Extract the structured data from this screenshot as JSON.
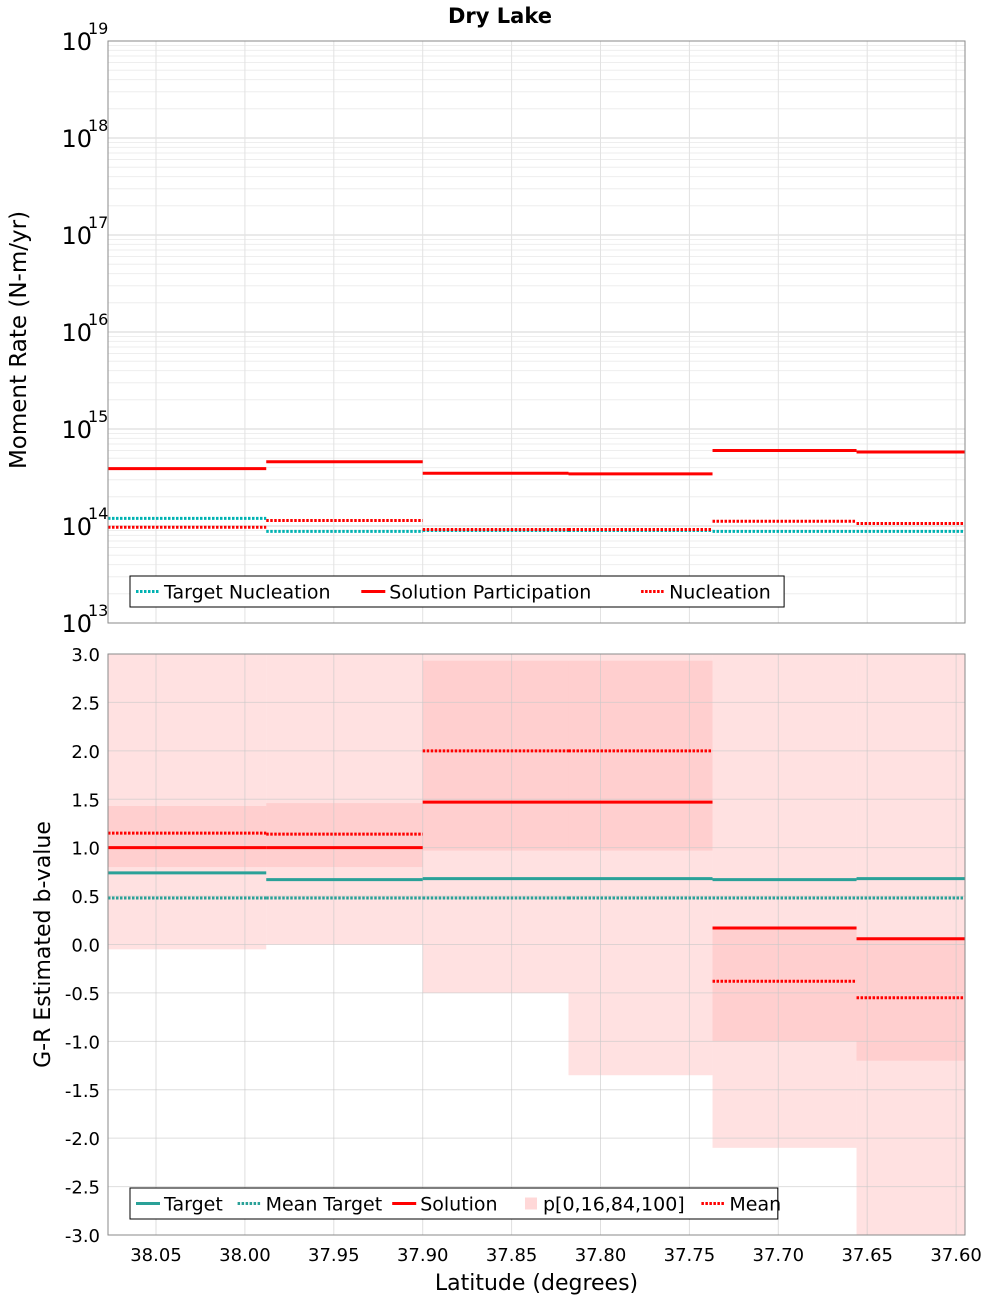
{
  "title": "Dry Lake",
  "chart_data": [
    {
      "type": "line",
      "subtype": "step",
      "ylabel": "Moment Rate (N-m/yr)",
      "xlabel": "",
      "yscale": "log",
      "ylim": [
        10000000000000.0,
        1e+19
      ],
      "xlim": [
        38.077,
        37.595
      ],
      "x_reversed": true,
      "x_ticks": [
        "38.05",
        "38.00",
        "37.95",
        "37.90",
        "37.85",
        "37.80",
        "37.75",
        "37.70",
        "37.65",
        "37.60"
      ],
      "x_tick_values": [
        38.05,
        38.0,
        37.95,
        37.9,
        37.85,
        37.8,
        37.75,
        37.7,
        37.65,
        37.6
      ],
      "y_ticks": [
        {
          "base": "10",
          "exp": "19",
          "value": 1e+19
        },
        {
          "base": "10",
          "exp": "18",
          "value": 1e+18
        },
        {
          "base": "10",
          "exp": "17",
          "value": 1e+17
        },
        {
          "base": "10",
          "exp": "16",
          "value": 1e+16
        },
        {
          "base": "10",
          "exp": "15",
          "value": 1000000000000000.0
        },
        {
          "base": "10",
          "exp": "14",
          "value": 100000000000000.0
        },
        {
          "base": "10",
          "exp": "13",
          "value": 10000000000000.0
        }
      ],
      "grid": true,
      "legend_position": "bottom-left",
      "bin_edges": [
        38.077,
        37.988,
        37.9,
        37.818,
        37.737,
        37.656,
        37.595
      ],
      "series": [
        {
          "name": "Target Nucleation",
          "style": "dotted",
          "color": "#00b2b2",
          "values": [
            120000000000000.0,
            88000000000000.0,
            90000000000000.0,
            90000000000000.0,
            88000000000000.0,
            88000000000000.0
          ]
        },
        {
          "name": "Solution Participation",
          "style": "solid",
          "color": "#ff0000",
          "values": [
            390000000000000.0,
            460000000000000.0,
            350000000000000.0,
            345000000000000.0,
            600000000000000.0,
            580000000000000.0
          ]
        },
        {
          "name": "Nucleation",
          "style": "dotted",
          "color": "#ff0000",
          "values": [
            97000000000000.0,
            114000000000000.0,
            92000000000000.0,
            92000000000000.0,
            112000000000000.0,
            106000000000000.0
          ]
        }
      ]
    },
    {
      "type": "line",
      "subtype": "step",
      "ylabel": "G-R Estimated b-value",
      "xlabel": "Latitude (degrees)",
      "ylim": [
        -3.0,
        3.0
      ],
      "xlim": [
        38.077,
        37.595
      ],
      "x_reversed": true,
      "x_ticks": [
        "38.05",
        "38.00",
        "37.95",
        "37.90",
        "37.85",
        "37.80",
        "37.75",
        "37.70",
        "37.65",
        "37.60"
      ],
      "x_tick_values": [
        38.05,
        38.0,
        37.95,
        37.9,
        37.85,
        37.8,
        37.75,
        37.7,
        37.65,
        37.6
      ],
      "y_ticks": [
        "3.0",
        "2.5",
        "2.0",
        "1.5",
        "1.0",
        "0.5",
        "0.0",
        "-0.5",
        "-1.0",
        "-1.5",
        "-2.0",
        "-2.5",
        "-3.0"
      ],
      "y_tick_values": [
        3.0,
        2.5,
        2.0,
        1.5,
        1.0,
        0.5,
        0.0,
        -0.5,
        -1.0,
        -1.5,
        -2.0,
        -2.5,
        -3.0
      ],
      "grid": true,
      "legend_position": "bottom-left",
      "bin_edges": [
        38.077,
        37.988,
        37.9,
        37.818,
        37.737,
        37.656,
        37.595
      ],
      "bands": {
        "name": "p[0,16,84,100]",
        "color": "#ffc8c8",
        "p0": [
          -0.05,
          0.0,
          -0.5,
          -1.35,
          -2.1,
          -3.0
        ],
        "p100": [
          3.0,
          3.0,
          3.0,
          3.0,
          3.0,
          3.0
        ],
        "p16": [
          0.8,
          0.8,
          0.97,
          0.97,
          -1.0,
          -1.2
        ],
        "p84": [
          1.43,
          1.46,
          2.93,
          2.93,
          0.18,
          0.07
        ]
      },
      "series": [
        {
          "name": "Target",
          "style": "solid",
          "color": "#2aa198",
          "values": [
            0.74,
            0.67,
            0.68,
            0.68,
            0.67,
            0.68
          ]
        },
        {
          "name": "Mean Target",
          "style": "dotted",
          "color": "#2aa198",
          "values": [
            0.48,
            0.48,
            0.48,
            0.48,
            0.48,
            0.48
          ]
        },
        {
          "name": "Solution",
          "style": "solid",
          "color": "#ff0000",
          "values": [
            1.0,
            1.0,
            1.47,
            1.47,
            0.17,
            0.06
          ]
        },
        {
          "name": "Mean",
          "style": "dotted",
          "color": "#ff0000",
          "values": [
            1.15,
            1.14,
            2.0,
            2.0,
            -0.38,
            -0.55
          ]
        }
      ]
    }
  ]
}
